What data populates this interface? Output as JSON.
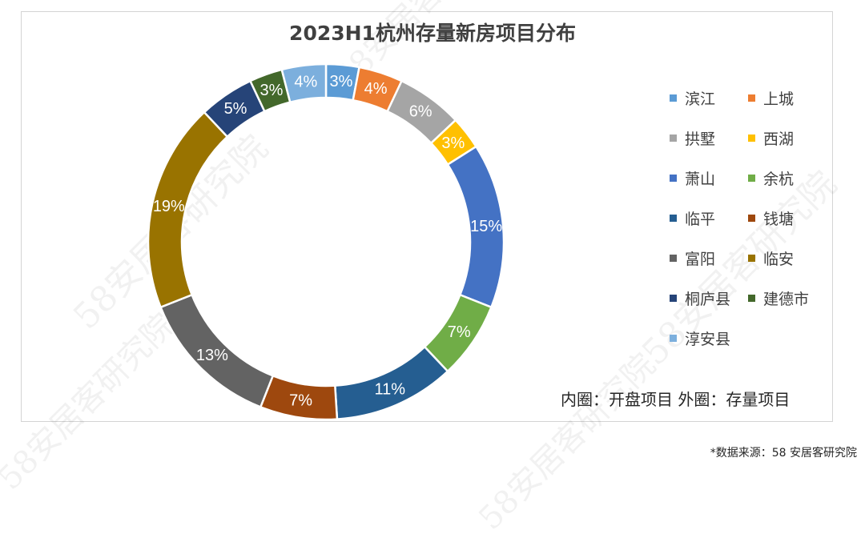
{
  "watermark": "58安居客研究院",
  "chart_data": {
    "type": "pie",
    "subtype": "donut",
    "title": "2023H1杭州存量新房项目分布",
    "categories": [
      "滨江",
      "上城",
      "拱墅",
      "西湖",
      "萧山",
      "余杭",
      "临平",
      "钱塘",
      "富阳",
      "临安",
      "桐庐县",
      "建德市",
      "淳安县"
    ],
    "values": [
      3,
      4,
      6,
      3,
      15,
      7,
      11,
      7,
      13,
      19,
      5,
      3,
      4
    ],
    "value_labels": [
      "3%",
      "4%",
      "6%",
      "3%",
      "15%",
      "7%",
      "11%",
      "7%",
      "13%",
      "19%",
      "5%",
      "3%",
      "4%"
    ],
    "colors": [
      "#5B9BD5",
      "#ED7D31",
      "#A5A5A5",
      "#FFC000",
      "#4472C4",
      "#70AD47",
      "#255E91",
      "#9E480E",
      "#636363",
      "#997300",
      "#264478",
      "#43682B",
      "#7CAFDD"
    ],
    "legend_position": "right"
  },
  "note": "内圈：开盘项目  外圈：存量项目",
  "source": "*数据来源：58 安居客研究院"
}
